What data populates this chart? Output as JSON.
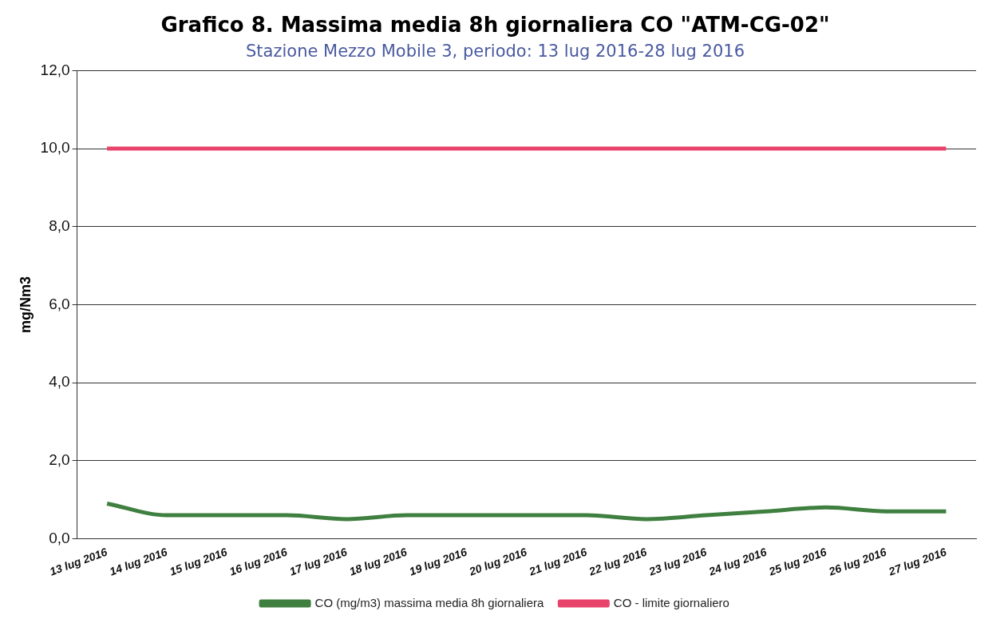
{
  "chart_data": {
    "type": "line",
    "title": "Grafico 8. Massima media 8h giornaliera CO \"ATM-CG-02\"",
    "subtitle": "Stazione Mezzo Mobile 3, periodo: 13 lug 2016-28 lug 2016",
    "ylabel": "mg/Nm3",
    "categories": [
      "13 lug 2016",
      "14 lug 2016",
      "15 lug 2016",
      "16 lug 2016",
      "17 lug 2016",
      "18 lug 2016",
      "19 lug 2016",
      "20 lug 2016",
      "21 lug 2016",
      "22 lug 2016",
      "23 lug 2016",
      "24 lug 2016",
      "25 lug 2016",
      "26 lug 2016",
      "27 lug 2016"
    ],
    "series": [
      {
        "name": "CO (mg/m3) massima media 8h giornaliera",
        "color": "#3f7f3f",
        "values": [
          0.9,
          0.6,
          0.6,
          0.6,
          0.5,
          0.6,
          0.6,
          0.6,
          0.6,
          0.5,
          0.6,
          0.7,
          0.8,
          0.7,
          0.7
        ]
      },
      {
        "name": "CO - limite giornaliero",
        "color": "#e8436a",
        "values": [
          10.0,
          10.0,
          10.0,
          10.0,
          10.0,
          10.0,
          10.0,
          10.0,
          10.0,
          10.0,
          10.0,
          10.0,
          10.0,
          10.0,
          10.0
        ]
      }
    ],
    "ylim": [
      0,
      12
    ],
    "yticks": [
      {
        "value": 0,
        "label": "0,0"
      },
      {
        "value": 2,
        "label": "2,0"
      },
      {
        "value": 4,
        "label": "4,0"
      },
      {
        "value": 6,
        "label": "6,0"
      },
      {
        "value": 8,
        "label": "8,0"
      },
      {
        "value": 10,
        "label": "10,0"
      },
      {
        "value": 12,
        "label": "12,0"
      }
    ],
    "grid": "y",
    "legend": "bottom",
    "marker": "none",
    "line_style": "solid"
  }
}
